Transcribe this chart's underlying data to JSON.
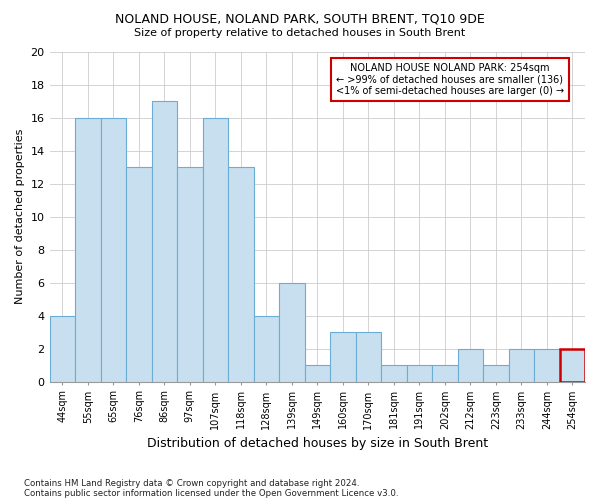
{
  "title1": "NOLAND HOUSE, NOLAND PARK, SOUTH BRENT, TQ10 9DE",
  "title2": "Size of property relative to detached houses in South Brent",
  "xlabel": "Distribution of detached houses by size in South Brent",
  "ylabel": "Number of detached properties",
  "categories": [
    "44sqm",
    "55sqm",
    "65sqm",
    "76sqm",
    "86sqm",
    "97sqm",
    "107sqm",
    "118sqm",
    "128sqm",
    "139sqm",
    "149sqm",
    "160sqm",
    "170sqm",
    "181sqm",
    "191sqm",
    "202sqm",
    "212sqm",
    "223sqm",
    "233sqm",
    "244sqm",
    "254sqm"
  ],
  "values": [
    4,
    16,
    16,
    13,
    17,
    13,
    16,
    13,
    4,
    6,
    1,
    3,
    3,
    1,
    1,
    1,
    2,
    1,
    2,
    2,
    2
  ],
  "bar_color": "#c8dff0",
  "bar_edge_color": "#6aaed6",
  "highlight_index": 20,
  "highlight_edge_color": "#cc0000",
  "annotation_box_color": "#ffffff",
  "annotation_border_color": "#cc0000",
  "annotation_text_line1": "NOLAND HOUSE NOLAND PARK: 254sqm",
  "annotation_text_line2": "← >99% of detached houses are smaller (136)",
  "annotation_text_line3": "<1% of semi-detached houses are larger (0) →",
  "footer1": "Contains HM Land Registry data © Crown copyright and database right 2024.",
  "footer2": "Contains public sector information licensed under the Open Government Licence v3.0.",
  "ylim": [
    0,
    20
  ],
  "yticks": [
    0,
    2,
    4,
    6,
    8,
    10,
    12,
    14,
    16,
    18,
    20
  ],
  "background_color": "#ffffff",
  "grid_color": "#cccccc"
}
